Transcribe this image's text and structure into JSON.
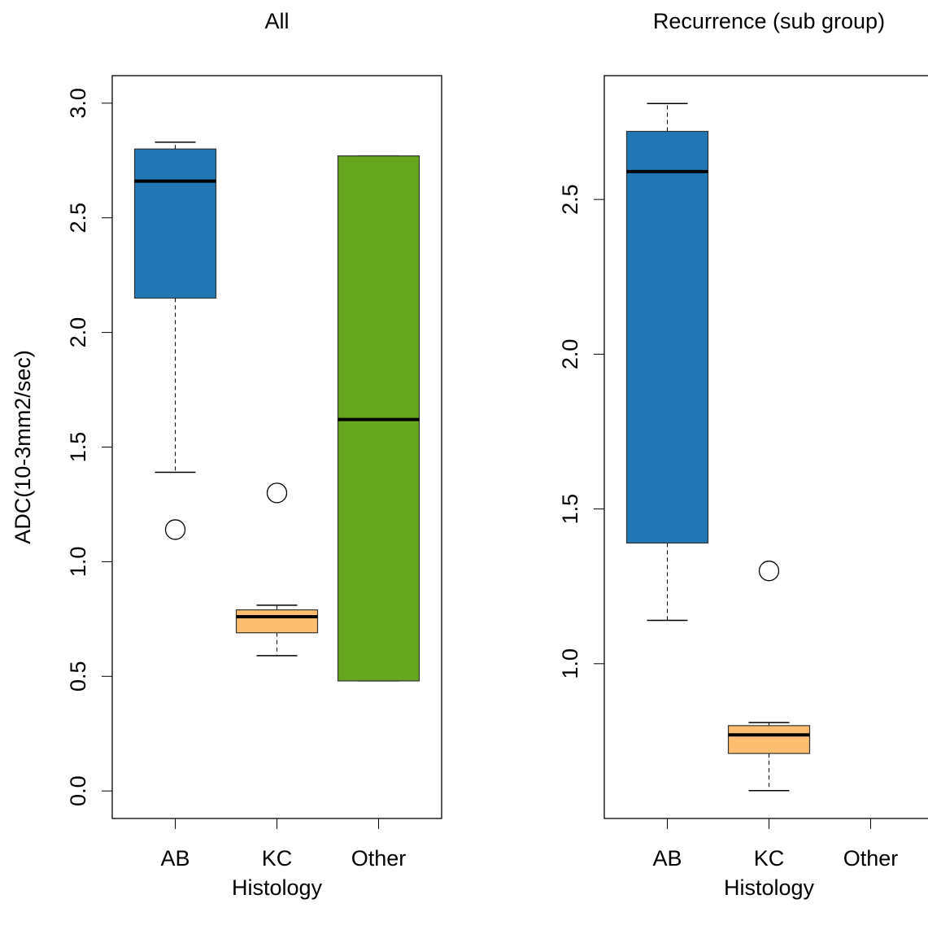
{
  "chart_data": [
    {
      "type": "box",
      "title": "All",
      "xlabel": "Histology",
      "ylabel": "ADC(10-3mm2/sec)",
      "categories": [
        "AB",
        "KC",
        "Other"
      ],
      "colors": [
        "#2077b4",
        "#fdbf6f",
        "#66a61e"
      ],
      "stats": [
        {
          "whisker_low": 1.39,
          "q1": 2.15,
          "median": 2.66,
          "q3": 2.8,
          "whisker_high": 2.83,
          "outliers": [
            1.14
          ]
        },
        {
          "whisker_low": 0.59,
          "q1": 0.69,
          "median": 0.76,
          "q3": 0.79,
          "whisker_high": 0.81,
          "outliers": [
            1.3
          ]
        },
        {
          "whisker_low": 0.48,
          "q1": 0.48,
          "median": 1.62,
          "q3": 2.77,
          "whisker_high": 2.77,
          "outliers": []
        }
      ],
      "ylim": [
        -0.12,
        3.12
      ],
      "yticks": [
        {
          "value": 0,
          "label": "0.0"
        },
        0.5,
        {
          "value": 1,
          "label": "1.0"
        },
        1.5,
        {
          "value": 2,
          "label": "2.0"
        },
        2.5,
        {
          "value": 3,
          "label": "3.0"
        }
      ]
    },
    {
      "type": "box",
      "title": "Recurrence (sub group)",
      "xlabel": "Histology",
      "categories": [
        "AB",
        "KC",
        "Other"
      ],
      "colors": [
        "#2077b4",
        "#fdbf6f",
        "#66a61e"
      ],
      "stats": [
        {
          "whisker_low": 1.14,
          "q1": 1.39,
          "median": 2.59,
          "q3": 2.72,
          "whisker_high": 2.81,
          "outliers": []
        },
        {
          "whisker_low": 0.59,
          "q1": 0.71,
          "median": 0.77,
          "q3": 0.8,
          "whisker_high": 0.81,
          "outliers": [
            1.3
          ]
        },
        null
      ],
      "ylim": [
        0.5,
        2.9
      ],
      "yticks": [
        {
          "value": 1,
          "label": "1.0"
        },
        1.5,
        {
          "value": 2,
          "label": "2.0"
        },
        2.5
      ]
    }
  ]
}
